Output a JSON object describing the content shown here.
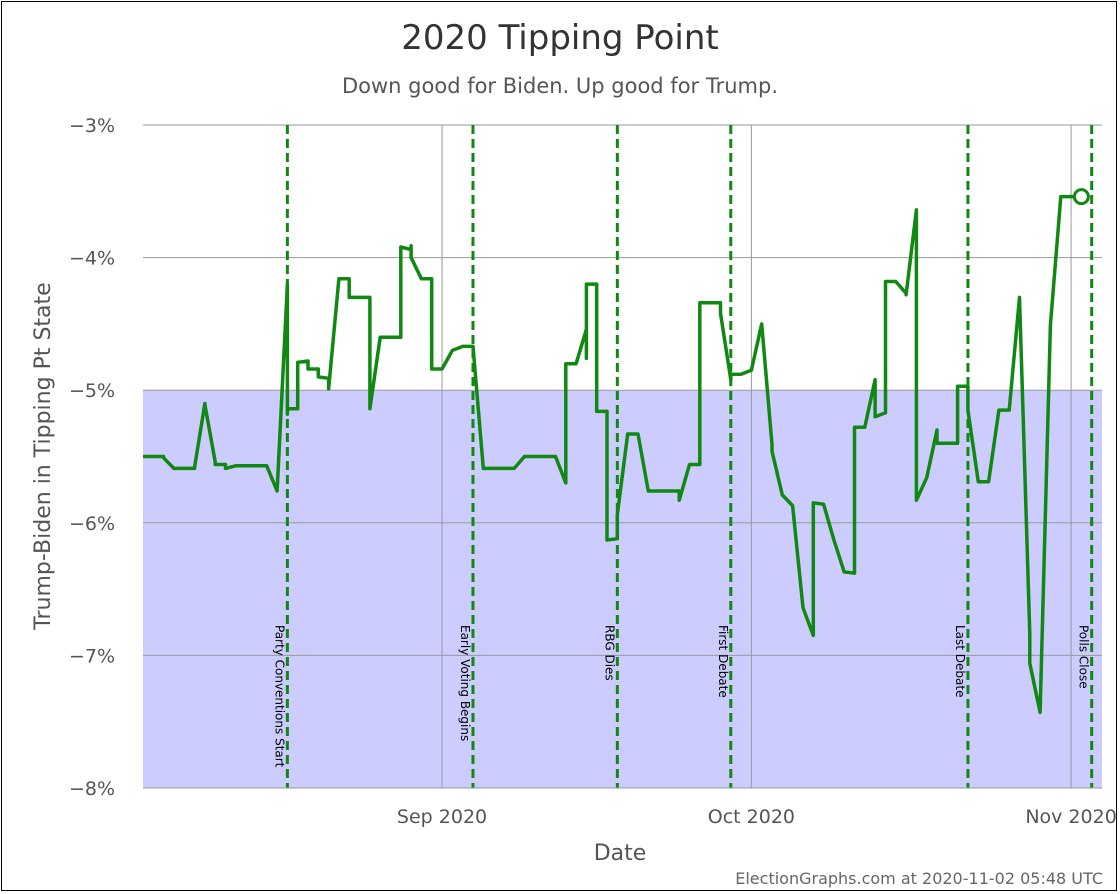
{
  "chart_data": {
    "type": "line",
    "title": "2020 Tipping Point",
    "subtitle": "Down good for Biden. Up good for Trump.",
    "xlabel": "Date",
    "ylabel": "Trump-Biden in Tipping Pt State",
    "credit": "ElectionGraphs.com at 2020-11-02 05:48 UTC",
    "x_range": [
      "2020-08-03",
      "2020-11-04"
    ],
    "ylim": [
      -8,
      -3
    ],
    "y_ticks": [
      {
        "value": -3,
        "label": "-3%"
      },
      {
        "value": -4,
        "label": "-4%"
      },
      {
        "value": -5,
        "label": "-5%"
      },
      {
        "value": -6,
        "label": "-6%"
      },
      {
        "value": -7,
        "label": "-7%"
      },
      {
        "value": -8,
        "label": "-8%"
      }
    ],
    "x_ticks": [
      {
        "date": "2020-09-01",
        "label": "Sep 2020"
      },
      {
        "date": "2020-10-01",
        "label": "Oct 2020"
      },
      {
        "date": "2020-11-01",
        "label": "Nov 2020"
      }
    ],
    "grid": true,
    "biden_region_below": -5,
    "colors": {
      "line": "#118811",
      "biden_region": "#ccccff",
      "grid": "#999999",
      "event": "#118811"
    },
    "events": [
      {
        "date": "2020-08-17",
        "label": "Party Conventions Start"
      },
      {
        "date": "2020-09-04",
        "label": "Early Voting Begins"
      },
      {
        "date": "2020-09-18",
        "label": "RBG Dies"
      },
      {
        "date": "2020-09-29",
        "label": "First Debate"
      },
      {
        "date": "2020-10-22",
        "label": "Last Debate"
      },
      {
        "date": "2020-11-03",
        "label": "Polls Close"
      }
    ],
    "series": [
      {
        "points": [
          [
            "2020-08-03",
            -5.5
          ],
          [
            "2020-08-05",
            -5.5
          ],
          [
            "2020-08-05",
            -5.51
          ],
          [
            "2020-08-06",
            -5.59
          ],
          [
            "2020-08-08",
            -5.59
          ],
          [
            "2020-08-08",
            -5.58
          ],
          [
            "2020-08-09",
            -5.1
          ],
          [
            "2020-08-09",
            -5.11
          ],
          [
            "2020-08-10",
            -5.54
          ],
          [
            "2020-08-10",
            -5.56
          ],
          [
            "2020-08-11",
            -5.56
          ],
          [
            "2020-08-11",
            -5.59
          ],
          [
            "2020-08-12",
            -5.57
          ],
          [
            "2020-08-15",
            -5.57
          ],
          [
            "2020-08-16",
            -5.76
          ],
          [
            "2020-08-16",
            -5.76
          ],
          [
            "2020-08-17",
            -4.2
          ],
          [
            "2020-08-17",
            -5.18
          ],
          [
            "2020-08-17",
            -4.95
          ],
          [
            "2020-08-17",
            -5.14
          ],
          [
            "2020-08-18",
            -5.14
          ],
          [
            "2020-08-18",
            -4.79
          ],
          [
            "2020-08-19",
            -4.78
          ],
          [
            "2020-08-19",
            -4.84
          ],
          [
            "2020-08-20",
            -4.84
          ],
          [
            "2020-08-20",
            -4.9
          ],
          [
            "2020-08-21",
            -4.91
          ],
          [
            "2020-08-21",
            -4.99
          ],
          [
            "2020-08-22",
            -4.16
          ],
          [
            "2020-08-23",
            -4.16
          ],
          [
            "2020-08-23",
            -4.3
          ],
          [
            "2020-08-25",
            -4.3
          ],
          [
            "2020-08-25",
            -5.14
          ],
          [
            "2020-08-26",
            -4.6
          ],
          [
            "2020-08-28",
            -4.6
          ],
          [
            "2020-08-28",
            -3.92
          ],
          [
            "2020-08-29",
            -3.94
          ],
          [
            "2020-08-29",
            -3.91
          ],
          [
            "2020-08-29",
            -4.0
          ],
          [
            "2020-08-30",
            -4.16
          ],
          [
            "2020-08-31",
            -4.16
          ],
          [
            "2020-08-31",
            -4.84
          ],
          [
            "2020-09-01",
            -4.84
          ],
          [
            "2020-09-02",
            -4.7
          ],
          [
            "2020-09-02",
            -4.7
          ],
          [
            "2020-09-03",
            -4.67
          ],
          [
            "2020-09-04",
            -4.67
          ],
          [
            "2020-09-05",
            -5.59
          ],
          [
            "2020-09-08",
            -5.59
          ],
          [
            "2020-09-09",
            -5.5
          ],
          [
            "2020-09-12",
            -5.5
          ],
          [
            "2020-09-13",
            -5.7
          ],
          [
            "2020-09-13",
            -4.8
          ],
          [
            "2020-09-14",
            -4.8
          ],
          [
            "2020-09-15",
            -4.54
          ],
          [
            "2020-09-15",
            -4.76
          ],
          [
            "2020-09-15",
            -4.2
          ],
          [
            "2020-09-16",
            -4.2
          ],
          [
            "2020-09-16",
            -5.16
          ],
          [
            "2020-09-17",
            -5.16
          ],
          [
            "2020-09-17",
            -6.13
          ],
          [
            "2020-09-18",
            -6.12
          ],
          [
            "2020-09-18",
            -5.94
          ],
          [
            "2020-09-19",
            -5.33
          ],
          [
            "2020-09-20",
            -5.33
          ],
          [
            "2020-09-21",
            -5.76
          ],
          [
            "2020-09-24",
            -5.76
          ],
          [
            "2020-09-24",
            -5.83
          ],
          [
            "2020-09-25",
            -5.56
          ],
          [
            "2020-09-26",
            -5.56
          ],
          [
            "2020-09-26",
            -4.34
          ],
          [
            "2020-09-28",
            -4.34
          ],
          [
            "2020-09-28",
            -4.42
          ],
          [
            "2020-09-29",
            -4.92
          ],
          [
            "2020-09-29",
            -4.88
          ],
          [
            "2020-09-30",
            -4.88
          ],
          [
            "2020-10-01",
            -4.85
          ],
          [
            "2020-10-02",
            -4.5
          ],
          [
            "2020-10-03",
            -5.41
          ],
          [
            "2020-10-03",
            -5.46
          ],
          [
            "2020-10-04",
            -5.79
          ],
          [
            "2020-10-05",
            -5.87
          ],
          [
            "2020-10-06",
            -6.64
          ],
          [
            "2020-10-06",
            -6.64
          ],
          [
            "2020-10-07",
            -6.85
          ],
          [
            "2020-10-07",
            -5.85
          ],
          [
            "2020-10-08",
            -5.86
          ],
          [
            "2020-10-09",
            -6.13
          ],
          [
            "2020-10-09",
            -6.13
          ],
          [
            "2020-10-10",
            -6.37
          ],
          [
            "2020-10-11",
            -6.38
          ],
          [
            "2020-10-11",
            -5.28
          ],
          [
            "2020-10-12",
            -5.28
          ],
          [
            "2020-10-13",
            -4.92
          ],
          [
            "2020-10-13",
            -5.2
          ],
          [
            "2020-10-14",
            -5.17
          ],
          [
            "2020-10-14",
            -4.18
          ],
          [
            "2020-10-15",
            -4.18
          ],
          [
            "2020-10-16",
            -4.27
          ],
          [
            "2020-10-16",
            -4.28
          ],
          [
            "2020-10-17",
            -3.64
          ],
          [
            "2020-10-17",
            -5.83
          ],
          [
            "2020-10-18",
            -5.66
          ],
          [
            "2020-10-18",
            -5.66
          ],
          [
            "2020-10-19",
            -5.3
          ],
          [
            "2020-10-19",
            -5.4
          ],
          [
            "2020-10-20",
            -5.4
          ],
          [
            "2020-10-21",
            -5.4
          ],
          [
            "2020-10-21",
            -4.97
          ],
          [
            "2020-10-22",
            -4.97
          ],
          [
            "2020-10-22",
            -5.1
          ],
          [
            "2020-10-22",
            -5.15
          ],
          [
            "2020-10-23",
            -5.69
          ],
          [
            "2020-10-24",
            -5.69
          ],
          [
            "2020-10-25",
            -5.15
          ],
          [
            "2020-10-26",
            -5.15
          ],
          [
            "2020-10-27",
            -4.3
          ],
          [
            "2020-10-27",
            -4.3
          ],
          [
            "2020-10-28",
            -6.84
          ],
          [
            "2020-10-28",
            -7.06
          ],
          [
            "2020-10-29",
            -7.43
          ],
          [
            "2020-10-29",
            -7.43
          ],
          [
            "2020-10-30",
            -4.51
          ],
          [
            "2020-10-30",
            -4.51
          ],
          [
            "2020-10-31",
            -3.54
          ],
          [
            "2020-11-01",
            -3.54
          ],
          [
            "2020-11-02",
            -3.54
          ]
        ]
      }
    ],
    "current_point": {
      "date": "2020-11-02",
      "value": -3.54
    }
  }
}
